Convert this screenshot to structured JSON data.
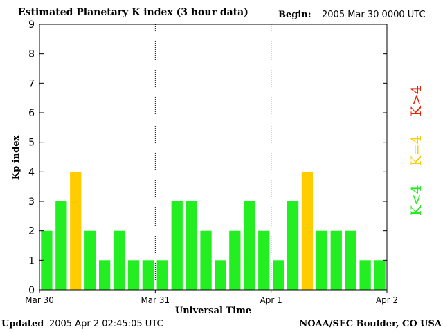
{
  "header": {
    "title": "Estimated Planetary K index (3 hour data)",
    "begin_label": "Begin:",
    "begin_value": "2005 Mar 30 0000 UTC"
  },
  "footer": {
    "updated_label": "Updated",
    "updated_value": "2005 Apr  2 02:45:05 UTC",
    "source": "NOAA/SEC Boulder, CO USA"
  },
  "legend": {
    "items": [
      {
        "label": "K<4",
        "color": "#22ee22"
      },
      {
        "label": "K=4",
        "color": "#ffcc00"
      },
      {
        "label": "K>4",
        "color": "#ee2200"
      }
    ]
  },
  "chart_data": {
    "type": "bar",
    "title": "Estimated Planetary K index (3 hour data)",
    "xlabel": "Universal Time",
    "ylabel": "Kp index",
    "ylim": [
      0,
      9
    ],
    "yticks": [
      0,
      1,
      2,
      3,
      4,
      5,
      6,
      7,
      8,
      9
    ],
    "xticks": [
      "Mar 30",
      "Mar 31",
      "Apr 1",
      "Apr 2"
    ],
    "bars_per_day": 8,
    "values": [
      2,
      3,
      4,
      2,
      1,
      2,
      1,
      1,
      1,
      3,
      3,
      2,
      1,
      2,
      3,
      2,
      1,
      3,
      4,
      2,
      2,
      2,
      1,
      1
    ],
    "colors": {
      "below4": "#22ee22",
      "equal4": "#ffcc00",
      "above4": "#ee2200"
    },
    "grid": false
  }
}
